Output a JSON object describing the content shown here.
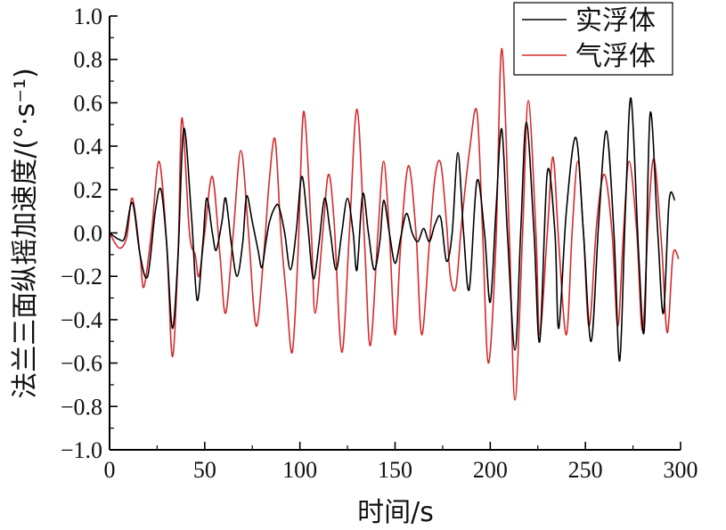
{
  "chart_data": {
    "type": "line",
    "xlabel": "时间/s",
    "ylabel": "法兰三面纵摇加速度/(°·s⁻¹)",
    "xlim": [
      0,
      300
    ],
    "ylim": [
      -1.0,
      1.0
    ],
    "xticks": [
      "0",
      "50",
      "100",
      "150",
      "200",
      "250",
      "300"
    ],
    "yticks": [
      "1.0",
      "0.8",
      "0.6",
      "0.4",
      "0.2",
      "0.0",
      "−0.2",
      "−0.4",
      "−0.6",
      "−0.8",
      "−1.0"
    ],
    "grid": false,
    "legend_position": "top-right",
    "series": [
      {
        "name": "实浮体",
        "color": "#000000",
        "points": [
          [
            0,
            0.0
          ],
          [
            5,
            -0.03
          ],
          [
            8,
            -0.02
          ],
          [
            12,
            0.14
          ],
          [
            16,
            -0.1
          ],
          [
            20,
            -0.2
          ],
          [
            24,
            0.1
          ],
          [
            27,
            0.2
          ],
          [
            30,
            -0.05
          ],
          [
            33,
            -0.44
          ],
          [
            36,
            -0.1
          ],
          [
            39,
            0.48
          ],
          [
            43,
            0.08
          ],
          [
            46,
            -0.31
          ],
          [
            49,
            -0.05
          ],
          [
            51,
            0.16
          ],
          [
            54,
            0.0
          ],
          [
            56,
            -0.08
          ],
          [
            59,
            0.05
          ],
          [
            61,
            0.16
          ],
          [
            64,
            -0.05
          ],
          [
            67,
            -0.2
          ],
          [
            70,
            -0.04
          ],
          [
            72,
            0.17
          ],
          [
            75,
            0.05
          ],
          [
            78,
            -0.08
          ],
          [
            80,
            -0.16
          ],
          [
            82,
            -0.05
          ],
          [
            84,
            0.05
          ],
          [
            87,
            0.12
          ],
          [
            89,
            0.12
          ],
          [
            92,
            0.0
          ],
          [
            95,
            -0.17
          ],
          [
            98,
            0.0
          ],
          [
            101,
            0.26
          ],
          [
            104,
            0.05
          ],
          [
            107,
            -0.21
          ],
          [
            110,
            -0.05
          ],
          [
            113,
            0.16
          ],
          [
            116,
            0.0
          ],
          [
            119,
            -0.17
          ],
          [
            122,
            0.0
          ],
          [
            125,
            0.16
          ],
          [
            128,
            0.0
          ],
          [
            130,
            -0.17
          ],
          [
            133,
            0.18
          ],
          [
            136,
            0.0
          ],
          [
            139,
            -0.17
          ],
          [
            142,
            -0.04
          ],
          [
            144,
            0.15
          ],
          [
            147,
            0.0
          ],
          [
            150,
            -0.14
          ],
          [
            153,
            -0.02
          ],
          [
            156,
            0.09
          ],
          [
            159,
            0.0
          ],
          [
            162,
            -0.04
          ],
          [
            165,
            0.02
          ],
          [
            168,
            -0.04
          ],
          [
            171,
            0.04
          ],
          [
            174,
            0.07
          ],
          [
            177,
            -0.13
          ],
          [
            180,
            0.0
          ],
          [
            183,
            0.37
          ],
          [
            186,
            0.0
          ],
          [
            189,
            -0.26
          ],
          [
            193,
            0.24
          ],
          [
            197,
            0.0
          ],
          [
            200,
            -0.32
          ],
          [
            203,
            0.1
          ],
          [
            206,
            0.48
          ],
          [
            209,
            0.0
          ],
          [
            213,
            -0.54
          ],
          [
            216,
            0.0
          ],
          [
            219,
            0.51
          ],
          [
            223,
            0.0
          ],
          [
            226,
            -0.5
          ],
          [
            230,
            0.28
          ],
          [
            234,
            0.0
          ],
          [
            236,
            -0.44
          ],
          [
            240,
            0.1
          ],
          [
            245,
            0.44
          ],
          [
            249,
            0.0
          ],
          [
            253,
            -0.5
          ],
          [
            257,
            0.05
          ],
          [
            261,
            0.47
          ],
          [
            265,
            0.0
          ],
          [
            268,
            -0.59
          ],
          [
            271,
            0.1
          ],
          [
            274,
            0.62
          ],
          [
            278,
            -0.1
          ],
          [
            281,
            -0.44
          ],
          [
            284,
            0.55
          ],
          [
            288,
            0.0
          ],
          [
            291,
            -0.37
          ],
          [
            294,
            0.15
          ],
          [
            297,
            0.15
          ]
        ]
      },
      {
        "name": "气浮体",
        "color": "#d52b2e",
        "points": [
          [
            0,
            0.0
          ],
          [
            5,
            -0.07
          ],
          [
            9,
            -0.02
          ],
          [
            12,
            0.16
          ],
          [
            16,
            -0.1
          ],
          [
            18,
            -0.25
          ],
          [
            22,
            0.0
          ],
          [
            26,
            0.33
          ],
          [
            30,
            -0.05
          ],
          [
            33,
            -0.57
          ],
          [
            36,
            -0.1
          ],
          [
            38,
            0.53
          ],
          [
            42,
            0.0
          ],
          [
            45,
            -0.1
          ],
          [
            47,
            -0.2
          ],
          [
            50,
            0.0
          ],
          [
            54,
            0.26
          ],
          [
            58,
            -0.1
          ],
          [
            61,
            -0.37
          ],
          [
            65,
            0.0
          ],
          [
            69,
            0.38
          ],
          [
            73,
            0.0
          ],
          [
            77,
            -0.43
          ],
          [
            81,
            -0.1
          ],
          [
            84,
            0.25
          ],
          [
            87,
            0.43
          ],
          [
            90,
            0.0
          ],
          [
            93,
            -0.3
          ],
          [
            96,
            -0.55
          ],
          [
            99,
            -0.1
          ],
          [
            102,
            0.56
          ],
          [
            106,
            0.0
          ],
          [
            108,
            -0.37
          ],
          [
            112,
            0.0
          ],
          [
            115,
            0.27
          ],
          [
            118,
            0.05
          ],
          [
            122,
            -0.55
          ],
          [
            126,
            0.0
          ],
          [
            130,
            0.57
          ],
          [
            134,
            -0.05
          ],
          [
            137,
            -0.52
          ],
          [
            141,
            0.0
          ],
          [
            144,
            0.33
          ],
          [
            147,
            0.0
          ],
          [
            150,
            -0.47
          ],
          [
            153,
            -0.05
          ],
          [
            157,
            0.31
          ],
          [
            161,
            0.0
          ],
          [
            164,
            -0.47
          ],
          [
            168,
            -0.05
          ],
          [
            171,
            0.26
          ],
          [
            174,
            0.32
          ],
          [
            177,
            0.05
          ],
          [
            179,
            -0.2
          ],
          [
            182,
            -0.25
          ],
          [
            185,
            0.05
          ],
          [
            189,
            0.37
          ],
          [
            193,
            0.56
          ],
          [
            196,
            0.0
          ],
          [
            199,
            -0.6
          ],
          [
            203,
            -0.05
          ],
          [
            206,
            0.85
          ],
          [
            210,
            0.0
          ],
          [
            213,
            -0.77
          ],
          [
            217,
            0.0
          ],
          [
            220,
            0.61
          ],
          [
            224,
            0.0
          ],
          [
            226,
            -0.47
          ],
          [
            230,
            0.0
          ],
          [
            233,
            0.35
          ],
          [
            236,
            -0.05
          ],
          [
            240,
            -0.47
          ],
          [
            243,
            0.0
          ],
          [
            246,
            0.33
          ],
          [
            249,
            0.0
          ],
          [
            252,
            -0.43
          ],
          [
            256,
            0.05
          ],
          [
            260,
            0.27
          ],
          [
            264,
            0.0
          ],
          [
            267,
            -0.43
          ],
          [
            270,
            0.0
          ],
          [
            273,
            0.33
          ],
          [
            277,
            0.0
          ],
          [
            280,
            -0.45
          ],
          [
            283,
            0.05
          ],
          [
            286,
            0.34
          ],
          [
            290,
            -0.05
          ],
          [
            293,
            -0.46
          ],
          [
            296,
            -0.1
          ],
          [
            299,
            -0.12
          ]
        ]
      }
    ]
  }
}
